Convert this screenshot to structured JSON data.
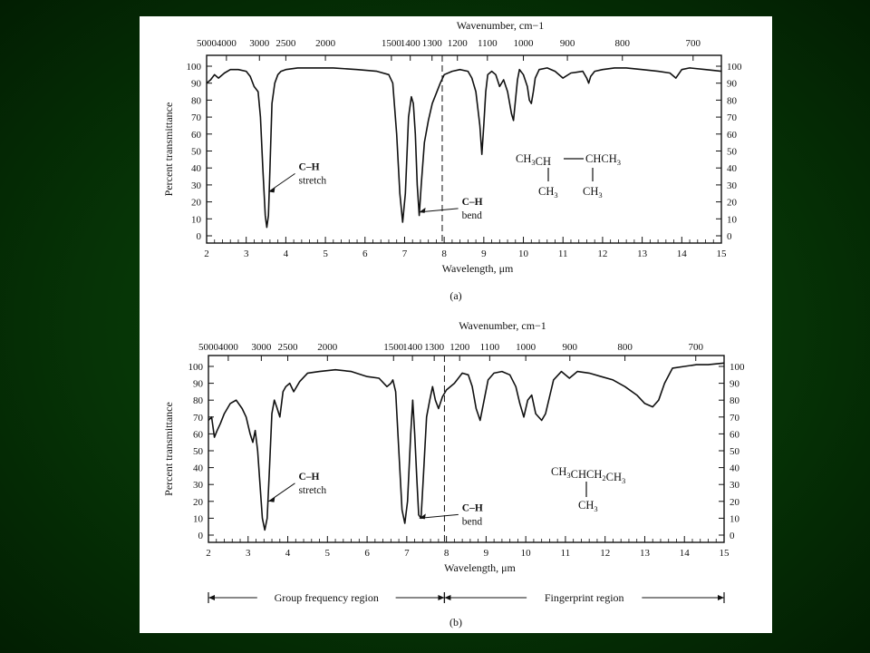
{
  "slide": {
    "background_colors": [
      "#0b4a0b",
      "#021e02"
    ],
    "figure_background": "#ffffff"
  },
  "chart_data": [
    {
      "id": "a",
      "type": "line",
      "caption": "(a)",
      "top_axis_label": "Wavenumber, cm−1",
      "top_axis_ticks": [
        5000,
        4000,
        3000,
        2500,
        2000,
        1500,
        1400,
        1300,
        1200,
        1100,
        1000,
        900,
        800,
        700
      ],
      "xlabel": "Wavelength, μm",
      "ylabel": "Percent transmittance",
      "xlim": [
        2,
        15
      ],
      "ylim": [
        0,
        100
      ],
      "x_ticks": [
        2,
        3,
        4,
        5,
        6,
        7,
        8,
        9,
        10,
        11,
        12,
        13,
        14,
        15
      ],
      "y_ticks": [
        0,
        10,
        20,
        30,
        40,
        50,
        60,
        70,
        80,
        90,
        100
      ],
      "dashed_line_x": 7.95,
      "annotations": [
        {
          "line1": "C–H",
          "line2": "stretch",
          "points_to_x": 3.5,
          "points_to_y": 26
        },
        {
          "line1": "C–H",
          "line2": "bend",
          "points_to_x": 7.3,
          "points_to_y": 14
        }
      ],
      "structure": {
        "row1_left": "CH3CH",
        "row1_right": "CHCH3",
        "row2_left": "CH3",
        "row2_right": "CH3"
      },
      "series": [
        {
          "x": [
            2.0,
            2.1,
            2.2,
            2.3,
            2.45,
            2.6,
            2.8,
            3.0,
            3.1,
            3.2,
            3.3,
            3.36,
            3.42,
            3.48,
            3.52,
            3.56,
            3.6,
            3.65,
            3.72,
            3.8,
            3.88,
            4.0,
            4.3,
            4.7,
            5.2,
            5.8,
            6.3,
            6.6,
            6.7,
            6.8,
            6.88,
            6.95,
            7.02,
            7.1,
            7.17,
            7.22,
            7.27,
            7.32,
            7.37,
            7.42,
            7.5,
            7.6,
            7.7,
            7.8,
            7.9,
            8.0,
            8.2,
            8.4,
            8.6,
            8.7,
            8.8,
            8.85,
            8.9,
            8.95,
            9.0,
            9.05,
            9.1,
            9.2,
            9.3,
            9.4,
            9.5,
            9.6,
            9.7,
            9.75,
            9.8,
            9.85,
            9.9,
            10.0,
            10.1,
            10.15,
            10.2,
            10.25,
            10.3,
            10.4,
            10.6,
            10.8,
            11.0,
            11.2,
            11.5,
            11.6,
            11.65,
            11.7,
            11.8,
            12.0,
            12.3,
            12.6,
            13.0,
            13.4,
            13.7,
            13.85,
            14.0,
            14.2,
            14.6,
            15.0
          ],
          "y": [
            90,
            92,
            95,
            93,
            96,
            98,
            98,
            97,
            94,
            88,
            85,
            70,
            40,
            12,
            5,
            12,
            40,
            78,
            90,
            95,
            97,
            98,
            99,
            99,
            99,
            98,
            97,
            95,
            90,
            60,
            25,
            8,
            25,
            70,
            82,
            78,
            60,
            30,
            12,
            30,
            55,
            68,
            78,
            84,
            90,
            95,
            97,
            98,
            97,
            93,
            85,
            75,
            65,
            48,
            65,
            85,
            95,
            97,
            95,
            88,
            92,
            85,
            72,
            68,
            80,
            92,
            98,
            95,
            88,
            80,
            78,
            85,
            93,
            98,
            99,
            97,
            93,
            96,
            97,
            93,
            90,
            94,
            97,
            98,
            99,
            99,
            98,
            97,
            96,
            93,
            98,
            99,
            98,
            97
          ]
        }
      ]
    },
    {
      "id": "b",
      "type": "line",
      "caption": "(b)",
      "top_axis_label": "Wavenumber, cm−1",
      "top_axis_ticks": [
        5000,
        4000,
        3000,
        2500,
        2000,
        1500,
        1400,
        1300,
        1200,
        1100,
        1000,
        900,
        800,
        700
      ],
      "xlabel": "Wavelength, μm",
      "ylabel": "Percent transmittance",
      "xlim": [
        2,
        15
      ],
      "ylim": [
        0,
        100
      ],
      "x_ticks": [
        2,
        3,
        4,
        5,
        6,
        7,
        8,
        9,
        10,
        11,
        12,
        13,
        14,
        15
      ],
      "y_ticks": [
        0,
        10,
        20,
        30,
        40,
        50,
        60,
        70,
        80,
        90,
        100
      ],
      "dashed_line_x": 7.95,
      "annotations": [
        {
          "line1": "C–H",
          "line2": "stretch",
          "points_to_x": 3.45,
          "points_to_y": 20
        },
        {
          "line1": "C–H",
          "line2": "bend",
          "points_to_x": 7.25,
          "points_to_y": 10
        }
      ],
      "structure": {
        "row1": "CH3CHCH2CH3",
        "row2": "CH3"
      },
      "regions": [
        {
          "label": "Group frequency region",
          "from": 2,
          "to": 7.95
        },
        {
          "label": "Fingerprint region",
          "from": 7.95,
          "to": 15
        }
      ],
      "series": [
        {
          "x": [
            2.0,
            2.08,
            2.15,
            2.22,
            2.3,
            2.4,
            2.55,
            2.7,
            2.85,
            2.95,
            3.05,
            3.12,
            3.18,
            3.24,
            3.3,
            3.36,
            3.42,
            3.48,
            3.54,
            3.6,
            3.66,
            3.72,
            3.8,
            3.88,
            3.95,
            4.05,
            4.15,
            4.3,
            4.5,
            4.8,
            5.2,
            5.6,
            6.0,
            6.3,
            6.5,
            6.6,
            6.65,
            6.72,
            6.8,
            6.88,
            6.95,
            7.02,
            7.1,
            7.15,
            7.2,
            7.25,
            7.3,
            7.36,
            7.42,
            7.5,
            7.58,
            7.65,
            7.72,
            7.8,
            7.9,
            8.0,
            8.2,
            8.4,
            8.55,
            8.65,
            8.75,
            8.85,
            8.95,
            9.05,
            9.2,
            9.4,
            9.6,
            9.75,
            9.85,
            9.95,
            10.05,
            10.15,
            10.25,
            10.4,
            10.5,
            10.6,
            10.7,
            10.9,
            11.1,
            11.3,
            11.6,
            11.9,
            12.2,
            12.5,
            12.8,
            13.0,
            13.2,
            13.35,
            13.5,
            13.7,
            14.0,
            14.3,
            14.6,
            15.0
          ],
          "y": [
            68,
            70,
            58,
            62,
            66,
            72,
            78,
            80,
            75,
            70,
            60,
            55,
            62,
            50,
            30,
            10,
            3,
            10,
            40,
            72,
            80,
            76,
            70,
            85,
            88,
            90,
            85,
            91,
            96,
            97,
            98,
            97,
            94,
            93,
            88,
            90,
            92,
            85,
            50,
            15,
            7,
            20,
            60,
            80,
            60,
            35,
            12,
            10,
            35,
            70,
            80,
            88,
            80,
            75,
            82,
            86,
            90,
            96,
            95,
            88,
            75,
            68,
            80,
            92,
            96,
            97,
            95,
            88,
            78,
            70,
            80,
            83,
            72,
            68,
            72,
            82,
            92,
            97,
            93,
            97,
            96,
            94,
            92,
            88,
            83,
            78,
            76,
            80,
            90,
            99,
            100,
            101,
            101,
            102
          ]
        }
      ]
    }
  ]
}
